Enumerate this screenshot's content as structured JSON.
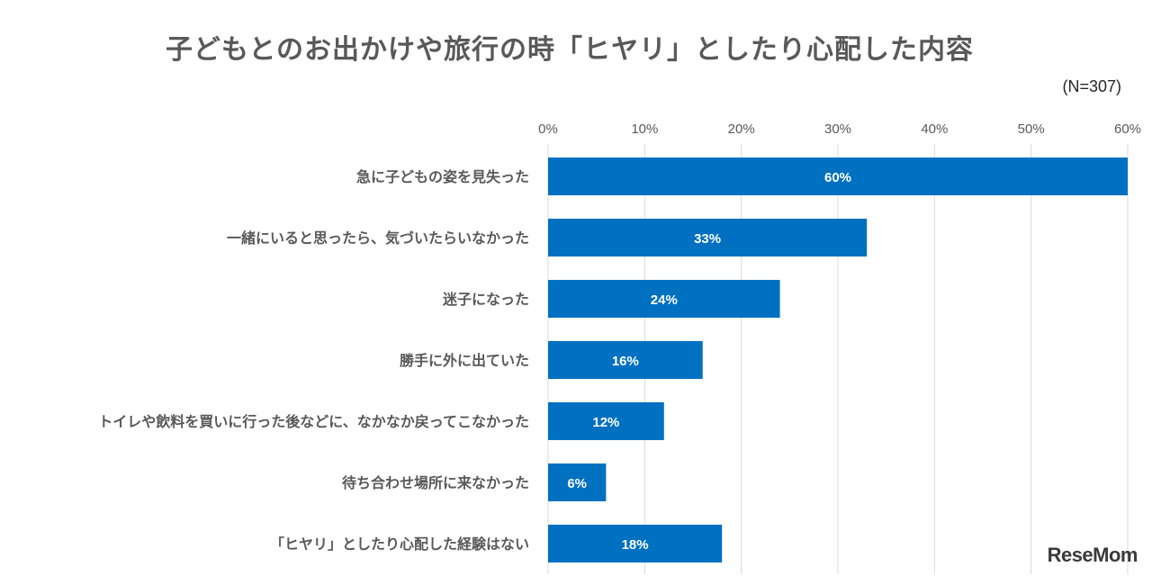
{
  "chart_data": {
    "type": "bar",
    "orientation": "horizontal",
    "title": "子どもとのお出かけや旅行の時「ヒヤリ」としたり心配した内容",
    "note": "(N=307)",
    "categories": [
      "急に子どもの姿を見失った",
      "一緒にいると思ったら、気づいたらいなかった",
      "迷子になった",
      "勝手に外に出ていた",
      "トイレや飲料を買いに行った後などに、なかなか戻ってこなかった",
      "待ち合わせ場所に来なかった",
      "「ヒヤリ」としたり心配した経験はない"
    ],
    "values": [
      60,
      33,
      24,
      16,
      12,
      6,
      18
    ],
    "value_labels": [
      "60%",
      "33%",
      "24%",
      "16%",
      "12%",
      "6%",
      "18%"
    ],
    "xlim": [
      0,
      60
    ],
    "xticks": [
      "0%",
      "10%",
      "20%",
      "30%",
      "40%",
      "50%",
      "60%"
    ],
    "axis_position": "top",
    "grid": true,
    "bar_color": "#0070c0"
  },
  "watermark": "ReseMom"
}
